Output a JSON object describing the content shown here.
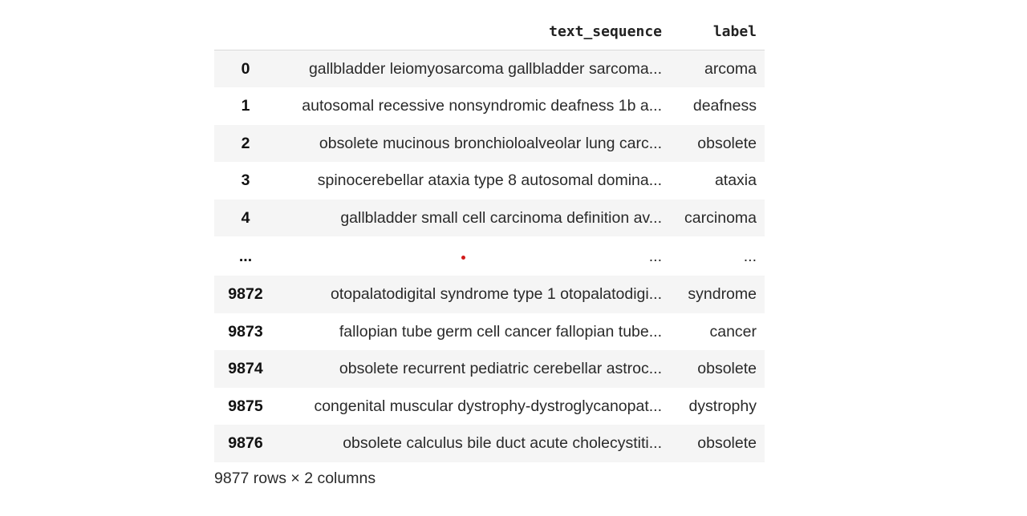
{
  "table": {
    "columns": [
      "",
      "text_sequence",
      "label"
    ],
    "rows": [
      {
        "index": "0",
        "text_sequence": "gallbladder leiomyosarcoma gallbladder sarcoma...",
        "label": "arcoma"
      },
      {
        "index": "1",
        "text_sequence": "autosomal recessive nonsyndromic deafness 1b a...",
        "label": "deafness"
      },
      {
        "index": "2",
        "text_sequence": "obsolete mucinous bronchioloalveolar lung carc...",
        "label": "obsolete"
      },
      {
        "index": "3",
        "text_sequence": "spinocerebellar ataxia type 8 autosomal domina...",
        "label": "ataxia"
      },
      {
        "index": "4",
        "text_sequence": "gallbladder small cell carcinoma definition av...",
        "label": "carcinoma"
      },
      {
        "index": "...",
        "text_sequence": "...",
        "label": "..."
      },
      {
        "index": "9872",
        "text_sequence": "otopalatodigital syndrome type 1 otopalatodigi...",
        "label": "syndrome"
      },
      {
        "index": "9873",
        "text_sequence": "fallopian tube germ cell cancer fallopian tube...",
        "label": "cancer"
      },
      {
        "index": "9874",
        "text_sequence": "obsolete recurrent pediatric cerebellar astroc...",
        "label": "obsolete"
      },
      {
        "index": "9875",
        "text_sequence": "congenital muscular dystrophy-dystroglycanopat...",
        "label": "dystrophy"
      },
      {
        "index": "9876",
        "text_sequence": "obsolete calculus bile duct acute cholecystiti...",
        "label": "obsolete"
      }
    ],
    "shape_text": "9877 rows × 2 columns",
    "marker_color": "#d11a1a"
  }
}
